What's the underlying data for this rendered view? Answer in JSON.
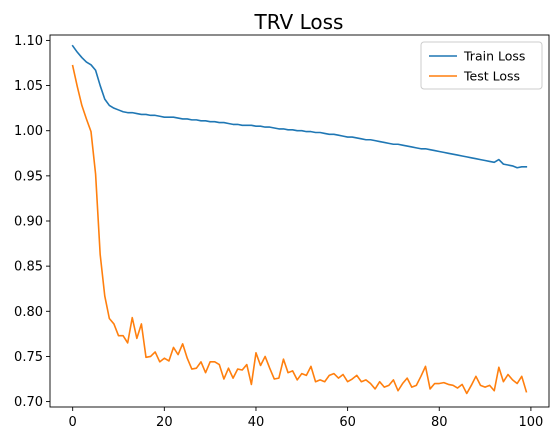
{
  "chart_data": {
    "type": "line",
    "title": "TRV Loss",
    "xlabel": "",
    "ylabel": "",
    "xlim": [
      -4.95,
      103.95
    ],
    "ylim": [
      0.694,
      1.106
    ],
    "xticks": [
      0,
      20,
      40,
      60,
      80,
      100
    ],
    "xtick_labels": [
      "0",
      "20",
      "40",
      "60",
      "80",
      "100"
    ],
    "yticks": [
      0.7,
      0.75,
      0.8,
      0.85,
      0.9,
      0.95,
      1.0,
      1.05,
      1.1
    ],
    "ytick_labels": [
      "0.70",
      "0.75",
      "0.80",
      "0.85",
      "0.90",
      "0.95",
      "1.00",
      "1.05",
      "1.10"
    ],
    "grid": false,
    "legend_position": "top-right",
    "x": [
      0,
      1,
      2,
      3,
      4,
      5,
      6,
      7,
      8,
      9,
      10,
      11,
      12,
      13,
      14,
      15,
      16,
      17,
      18,
      19,
      20,
      21,
      22,
      23,
      24,
      25,
      26,
      27,
      28,
      29,
      30,
      31,
      32,
      33,
      34,
      35,
      36,
      37,
      38,
      39,
      40,
      41,
      42,
      43,
      44,
      45,
      46,
      47,
      48,
      49,
      50,
      51,
      52,
      53,
      54,
      55,
      56,
      57,
      58,
      59,
      60,
      61,
      62,
      63,
      64,
      65,
      66,
      67,
      68,
      69,
      70,
      71,
      72,
      73,
      74,
      75,
      76,
      77,
      78,
      79,
      80,
      81,
      82,
      83,
      84,
      85,
      86,
      87,
      88,
      89,
      90,
      91,
      92,
      93,
      94,
      95,
      96,
      97,
      98,
      99
    ],
    "series": [
      {
        "name": "Train Loss",
        "color": "#1f77b4",
        "values": [
          1.094,
          1.087,
          1.081,
          1.076,
          1.073,
          1.067,
          1.05,
          1.035,
          1.028,
          1.025,
          1.023,
          1.021,
          1.02,
          1.02,
          1.019,
          1.018,
          1.018,
          1.017,
          1.017,
          1.016,
          1.015,
          1.015,
          1.015,
          1.014,
          1.013,
          1.013,
          1.012,
          1.012,
          1.011,
          1.011,
          1.01,
          1.01,
          1.009,
          1.009,
          1.008,
          1.007,
          1.007,
          1.006,
          1.006,
          1.006,
          1.005,
          1.005,
          1.004,
          1.004,
          1.003,
          1.002,
          1.002,
          1.001,
          1.001,
          1.0,
          1.0,
          0.999,
          0.999,
          0.998,
          0.998,
          0.997,
          0.996,
          0.996,
          0.995,
          0.994,
          0.993,
          0.993,
          0.992,
          0.991,
          0.99,
          0.99,
          0.989,
          0.988,
          0.987,
          0.986,
          0.985,
          0.985,
          0.984,
          0.983,
          0.982,
          0.981,
          0.98,
          0.98,
          0.979,
          0.978,
          0.977,
          0.976,
          0.975,
          0.974,
          0.973,
          0.972,
          0.971,
          0.97,
          0.969,
          0.968,
          0.967,
          0.966,
          0.965,
          0.968,
          0.963,
          0.962,
          0.961,
          0.959,
          0.96,
          0.96
        ]
      },
      {
        "name": "Test Loss",
        "color": "#ff7f0e",
        "values": [
          1.072,
          1.049,
          1.028,
          1.013,
          0.999,
          0.952,
          0.863,
          0.817,
          0.792,
          0.786,
          0.773,
          0.773,
          0.765,
          0.793,
          0.77,
          0.786,
          0.749,
          0.75,
          0.755,
          0.744,
          0.748,
          0.745,
          0.76,
          0.752,
          0.764,
          0.748,
          0.736,
          0.737,
          0.744,
          0.732,
          0.744,
          0.744,
          0.741,
          0.725,
          0.737,
          0.726,
          0.736,
          0.735,
          0.741,
          0.719,
          0.754,
          0.74,
          0.75,
          0.737,
          0.725,
          0.726,
          0.747,
          0.732,
          0.734,
          0.724,
          0.731,
          0.729,
          0.739,
          0.722,
          0.724,
          0.722,
          0.729,
          0.731,
          0.726,
          0.73,
          0.722,
          0.725,
          0.729,
          0.722,
          0.724,
          0.72,
          0.714,
          0.722,
          0.716,
          0.718,
          0.724,
          0.712,
          0.72,
          0.726,
          0.716,
          0.718,
          0.728,
          0.739,
          0.714,
          0.72,
          0.72,
          0.721,
          0.719,
          0.718,
          0.715,
          0.719,
          0.709,
          0.718,
          0.728,
          0.718,
          0.716,
          0.718,
          0.712,
          0.738,
          0.722,
          0.73,
          0.724,
          0.72,
          0.728,
          0.711
        ]
      }
    ]
  }
}
